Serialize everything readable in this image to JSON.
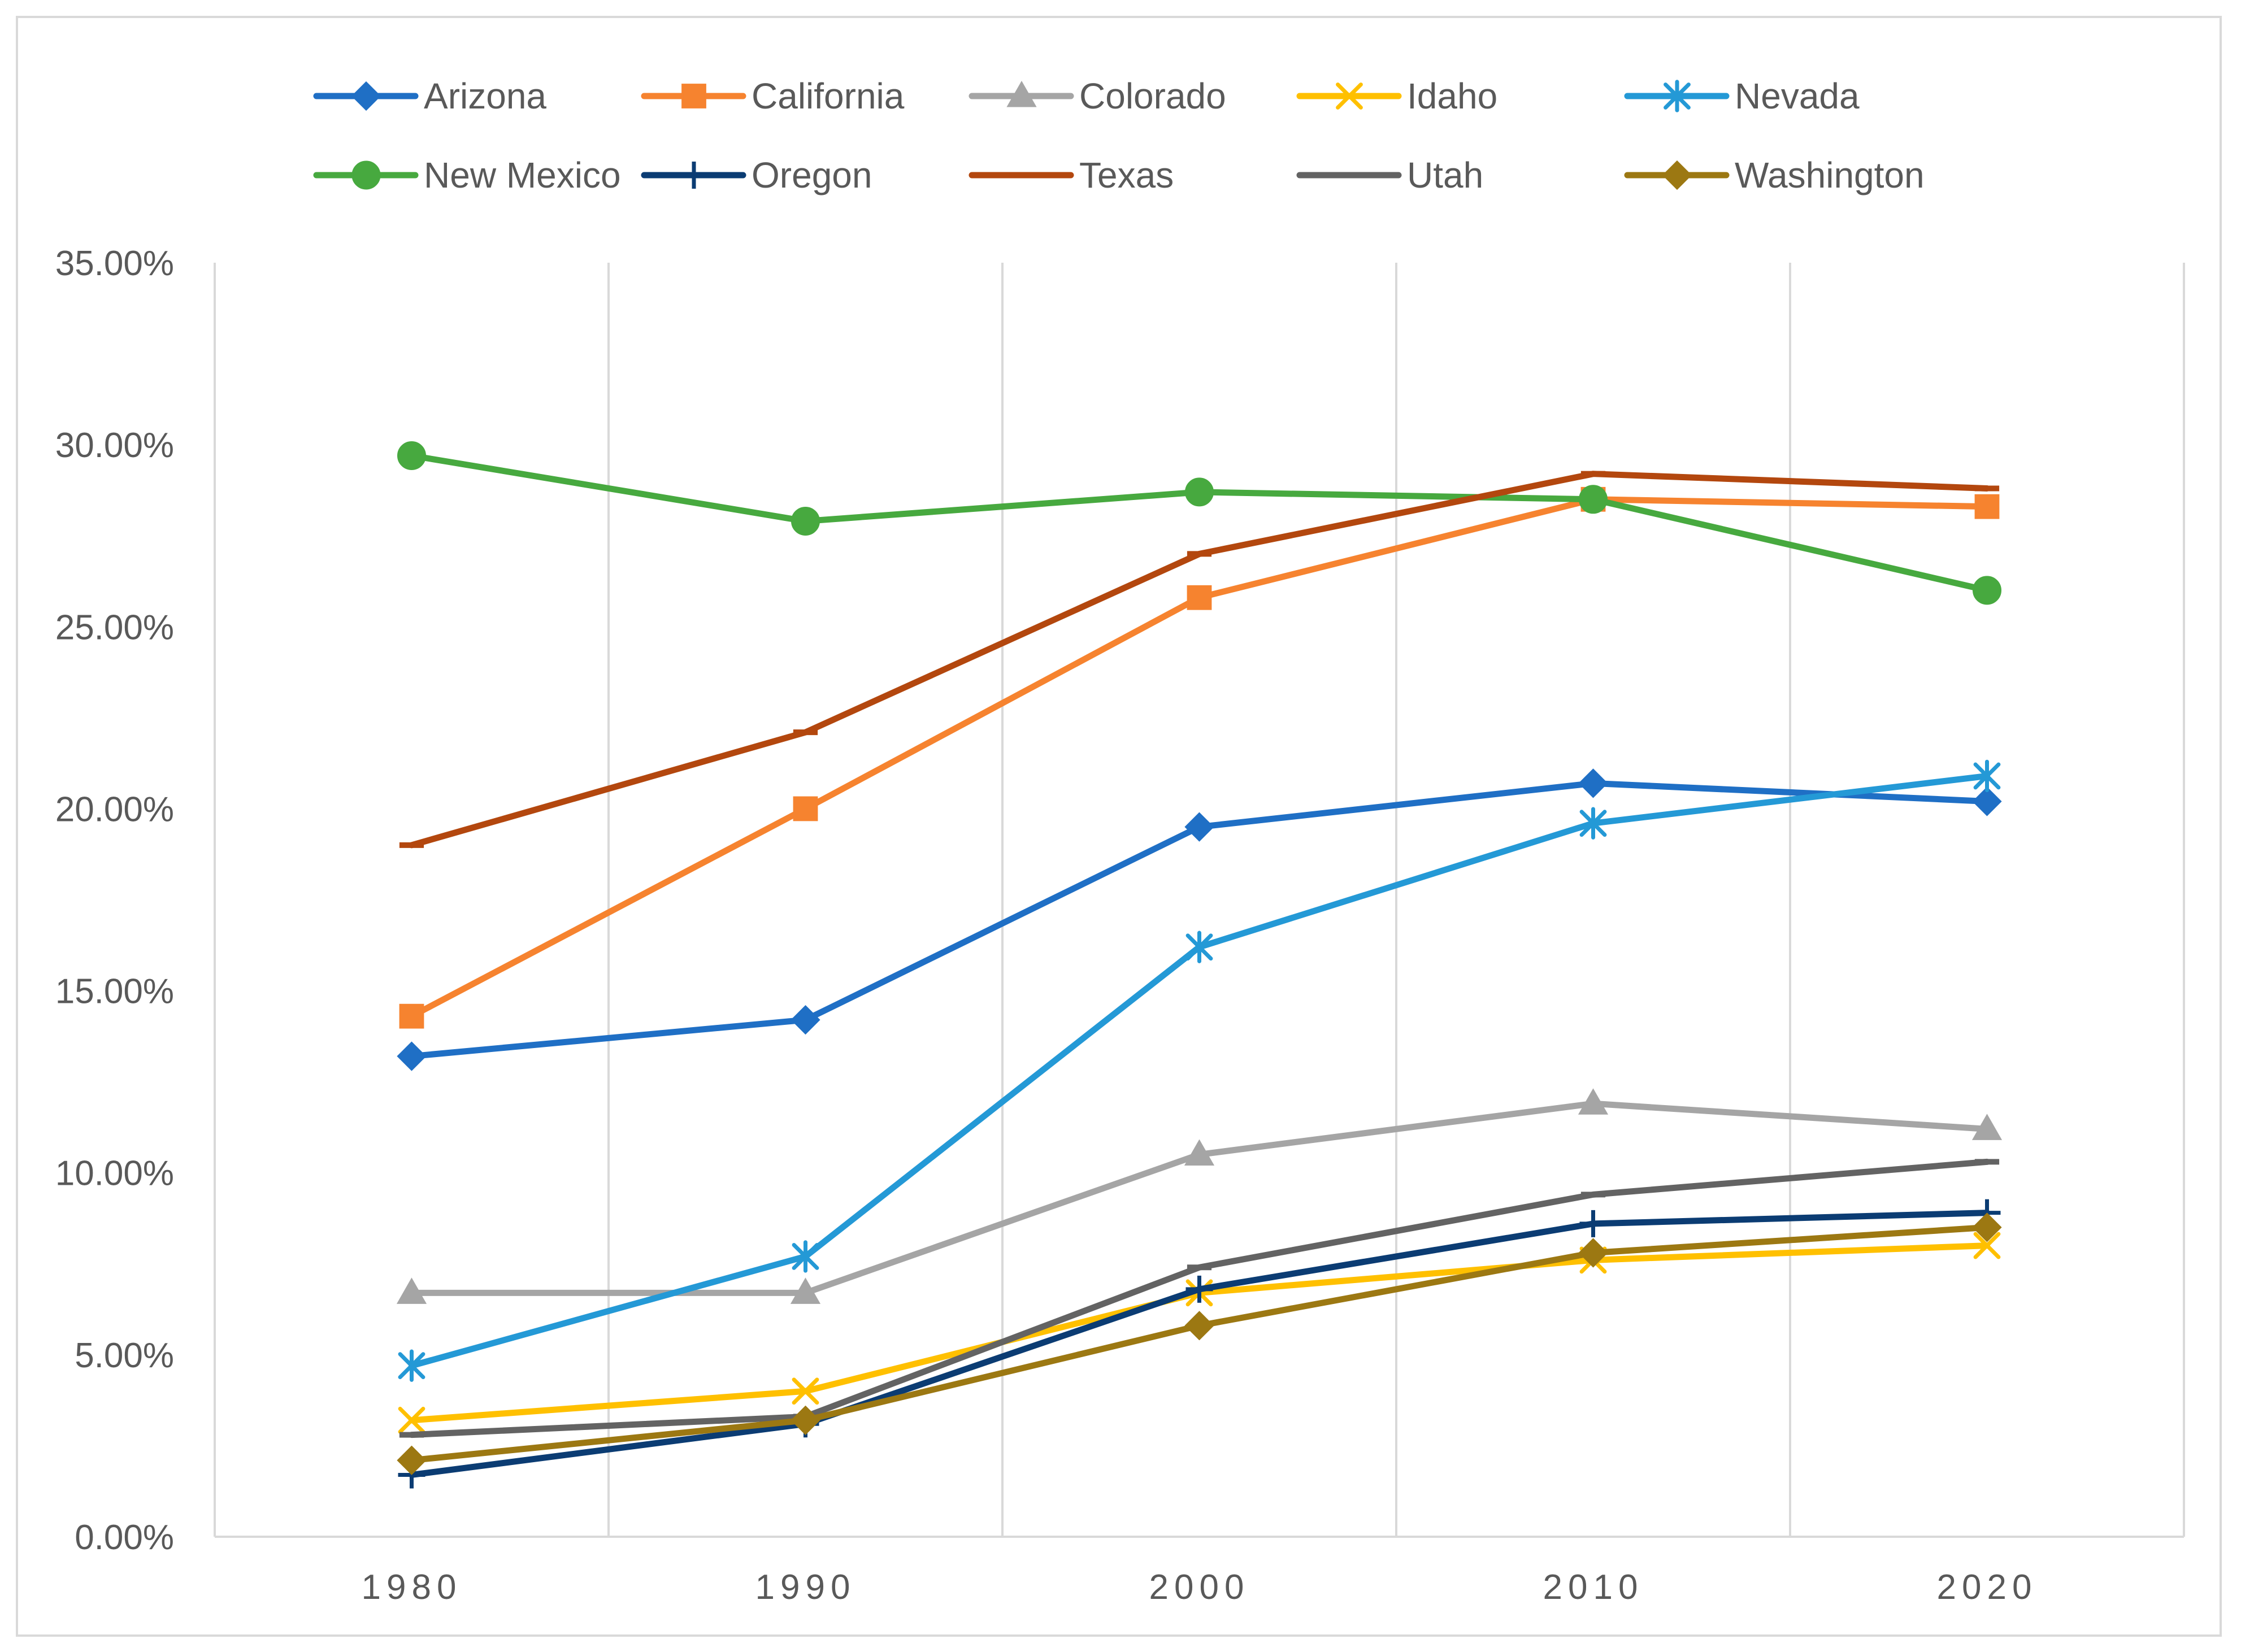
{
  "chart_data": {
    "type": "line",
    "title": "",
    "xlabel": "",
    "ylabel": "",
    "categories": [
      "1980",
      "1990",
      "2000",
      "2010",
      "2020"
    ],
    "ylim": [
      0,
      35
    ],
    "yticks": [
      0,
      5,
      10,
      15,
      20,
      25,
      30,
      35
    ],
    "ytick_labels": [
      "0.00%",
      "5.00%",
      "10.00%",
      "15.00%",
      "20.00%",
      "25.00%",
      "30.00%",
      "35.00%"
    ],
    "grid": "vertical",
    "legend_position": "top",
    "series": [
      {
        "name": "Arizona",
        "color": "#1F6FC5",
        "marker": "diamond",
        "values": [
          13.2,
          14.2,
          19.5,
          20.7,
          20.2
        ]
      },
      {
        "name": "California",
        "color": "#F6832F",
        "marker": "square",
        "values": [
          14.3,
          20.0,
          25.8,
          28.5,
          28.3
        ]
      },
      {
        "name": "Colorado",
        "color": "#A5A5A5",
        "marker": "triangle",
        "values": [
          6.7,
          6.7,
          10.5,
          11.9,
          11.2
        ]
      },
      {
        "name": "Idaho",
        "color": "#FFC000",
        "marker": "x",
        "values": [
          3.2,
          4.0,
          6.7,
          7.6,
          8.0
        ]
      },
      {
        "name": "Nevada",
        "color": "#2499D6",
        "marker": "asterisk",
        "values": [
          4.7,
          7.7,
          16.2,
          19.6,
          20.9
        ]
      },
      {
        "name": "New Mexico",
        "color": "#47A93F",
        "marker": "circle",
        "values": [
          29.7,
          27.9,
          28.7,
          28.5,
          26.0
        ]
      },
      {
        "name": "Oregon",
        "color": "#0B3C73",
        "marker": "plus",
        "values": [
          1.7,
          3.1,
          6.8,
          8.6,
          8.9
        ]
      },
      {
        "name": "Texas",
        "color": "#B3470E",
        "marker": "dash",
        "values": [
          19.0,
          22.1,
          27.0,
          29.2,
          28.8
        ]
      },
      {
        "name": "Utah",
        "color": "#636363",
        "marker": "dash",
        "values": [
          2.8,
          3.3,
          7.4,
          9.4,
          10.3
        ]
      },
      {
        "name": "Washington",
        "color": "#9C7812",
        "marker": "diamond",
        "values": [
          2.1,
          3.2,
          5.8,
          7.8,
          8.5
        ]
      }
    ]
  }
}
